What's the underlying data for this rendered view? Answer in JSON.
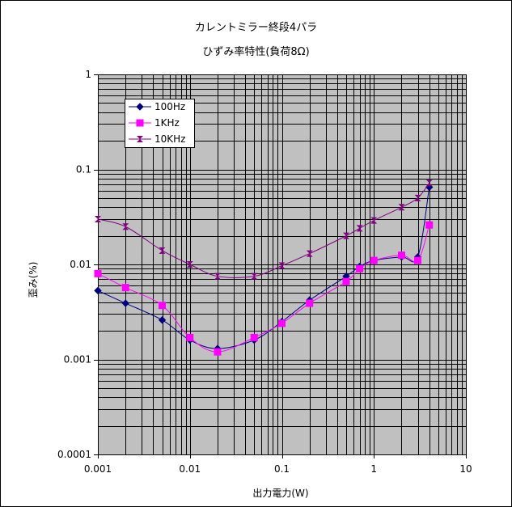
{
  "chart_data": {
    "type": "scatter",
    "title": "カレントミラー終段4パラ",
    "subtitle": "ひずみ率特性(負荷8Ω)",
    "xlabel": "出力電力(W)",
    "ylabel": "歪み(%)",
    "xscale": "log",
    "yscale": "log",
    "xlim": [
      0.001,
      10
    ],
    "ylim": [
      0.0001,
      1
    ],
    "x_tick_labels": [
      "0.001",
      "0.01",
      "0.1",
      "1",
      "10"
    ],
    "y_tick_labels": [
      "0.0001",
      "0.001",
      "0.01",
      "0.1",
      "1"
    ],
    "grid": true,
    "plot_background": "#c0c0c0",
    "legend_position": "top-left",
    "series": [
      {
        "name": "100Hz",
        "color": "#000080",
        "marker": "diamond",
        "x": [
          0.001,
          0.002,
          0.005,
          0.01,
          0.02,
          0.05,
          0.1,
          0.2,
          0.5,
          0.7,
          1,
          2,
          3,
          4
        ],
        "y": [
          0.0053,
          0.0039,
          0.0026,
          0.0016,
          0.0013,
          0.0016,
          0.0025,
          0.0042,
          0.0075,
          0.0095,
          0.011,
          0.012,
          0.012,
          0.065
        ]
      },
      {
        "name": "1KHz",
        "color": "#ff00ff",
        "marker": "square",
        "x": [
          0.001,
          0.002,
          0.005,
          0.01,
          0.02,
          0.05,
          0.1,
          0.2,
          0.5,
          0.7,
          1,
          2,
          3,
          4
        ],
        "y": [
          0.008,
          0.0057,
          0.0037,
          0.0017,
          0.0012,
          0.0017,
          0.0024,
          0.0039,
          0.0066,
          0.009,
          0.011,
          0.0125,
          0.011,
          0.026
        ]
      },
      {
        "name": "10KHz",
        "color": "#800080",
        "marker": "hourglass",
        "x": [
          0.001,
          0.002,
          0.005,
          0.01,
          0.02,
          0.05,
          0.1,
          0.2,
          0.5,
          0.7,
          1,
          2,
          3,
          4
        ],
        "y": [
          0.03,
          0.025,
          0.014,
          0.01,
          0.0075,
          0.0075,
          0.0097,
          0.013,
          0.02,
          0.024,
          0.029,
          0.04,
          0.05,
          0.072
        ]
      }
    ]
  }
}
